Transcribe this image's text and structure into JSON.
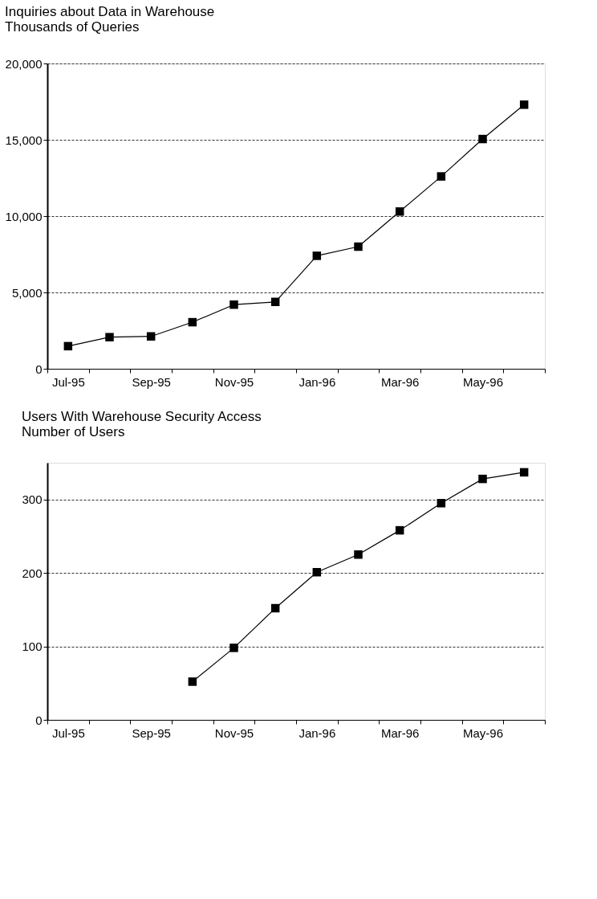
{
  "chart_data": [
    {
      "type": "line",
      "title": "Inquiries about Data in Warehouse",
      "ylabel": "Thousands of Queries",
      "categories": [
        "Jul-95",
        null,
        "Sep-95",
        null,
        "Nov-95",
        null,
        "Jan-96",
        null,
        "Mar-96",
        null,
        "May-96",
        null
      ],
      "series": [
        {
          "color": "#000000",
          "values": [
            1480,
            2070,
            2120,
            3050,
            4200,
            4380,
            7400,
            8000,
            10300,
            12600,
            15050,
            17300
          ]
        }
      ],
      "ylim": [
        0,
        20000
      ],
      "yticks": [
        0,
        {
          "value": 5000,
          "label": "5,000"
        },
        {
          "value": 10000,
          "label": "10,000"
        },
        {
          "value": 15000,
          "label": "15,000"
        },
        {
          "value": 20000,
          "label": "20,000"
        }
      ],
      "grid": "y",
      "marker": "square",
      "line_style": "solid"
    },
    {
      "type": "line",
      "title": "Users With Warehouse Security Access",
      "ylabel": "Number of Users",
      "categories": [
        "Jul-95",
        null,
        "Sep-95",
        null,
        "Nov-95",
        null,
        "Jan-96",
        null,
        "Mar-96",
        null,
        "May-96",
        null
      ],
      "series": [
        {
          "color": "#000000",
          "values": [
            null,
            null,
            null,
            52,
            98,
            152,
            201,
            225,
            258,
            295,
            328,
            337
          ]
        }
      ],
      "ylim": [
        0,
        350
      ],
      "yticks": [
        0,
        100,
        200,
        300
      ],
      "grid": "y",
      "marker": "square",
      "line_style": "solid"
    }
  ]
}
